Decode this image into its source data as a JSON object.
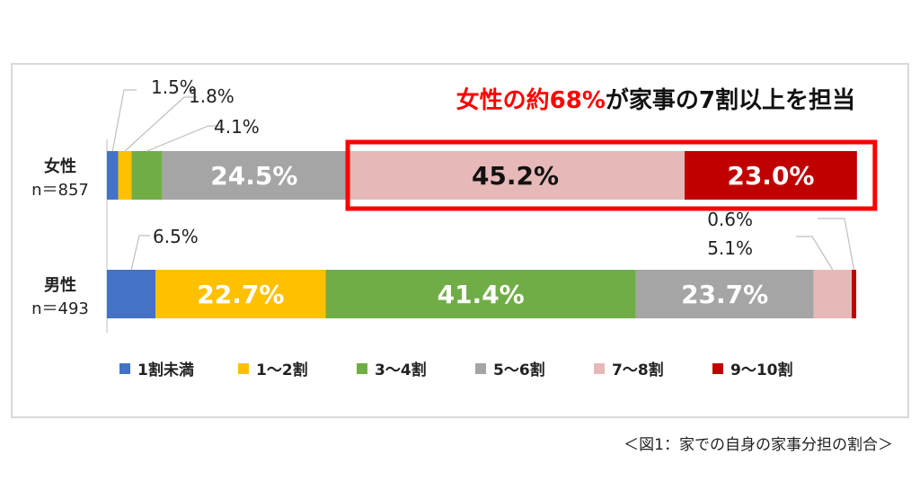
{
  "chart_data": {
    "type": "bar",
    "orientation": "horizontal",
    "stacked": true,
    "title": "女性の約68%が家事の7割以上を担当",
    "title_highlight": "女性の約68%",
    "title_rest": "が家事の7割以上を担当",
    "categories": [
      {
        "label": "女性",
        "n_label": "n＝857"
      },
      {
        "label": "男性",
        "n_label": "n＝493"
      }
    ],
    "series": [
      {
        "name": "1割未満",
        "color": "#4472c4",
        "values": [
          1.5,
          6.5
        ],
        "value_labels": [
          "1.5%",
          "6.5%"
        ]
      },
      {
        "name": "1～2割",
        "color": "#ffc000",
        "values": [
          1.8,
          22.7
        ],
        "value_labels": [
          "1.8%",
          "22.7%"
        ]
      },
      {
        "name": "3～4割",
        "color": "#70ad47",
        "values": [
          4.1,
          41.4
        ],
        "value_labels": [
          "4.1%",
          "41.4%"
        ]
      },
      {
        "name": "5～6割",
        "color": "#a5a5a5",
        "values": [
          24.5,
          23.7
        ],
        "value_labels": [
          "24.5%",
          "23.7%"
        ]
      },
      {
        "name": "7～8割",
        "color": "#e6b9b8",
        "values": [
          45.2,
          5.1
        ],
        "value_labels": [
          "45.2%",
          "5.1%"
        ]
      },
      {
        "name": "9～10割",
        "color": "#c00000",
        "values": [
          23.0,
          0.6
        ],
        "value_labels": [
          "23.0%",
          "0.6%"
        ]
      }
    ],
    "xlim": [
      0,
      100
    ],
    "legend_position": "bottom",
    "highlight_color": "#ff0000"
  },
  "caption": "＜図1：家での自身の家事分担の割合＞"
}
